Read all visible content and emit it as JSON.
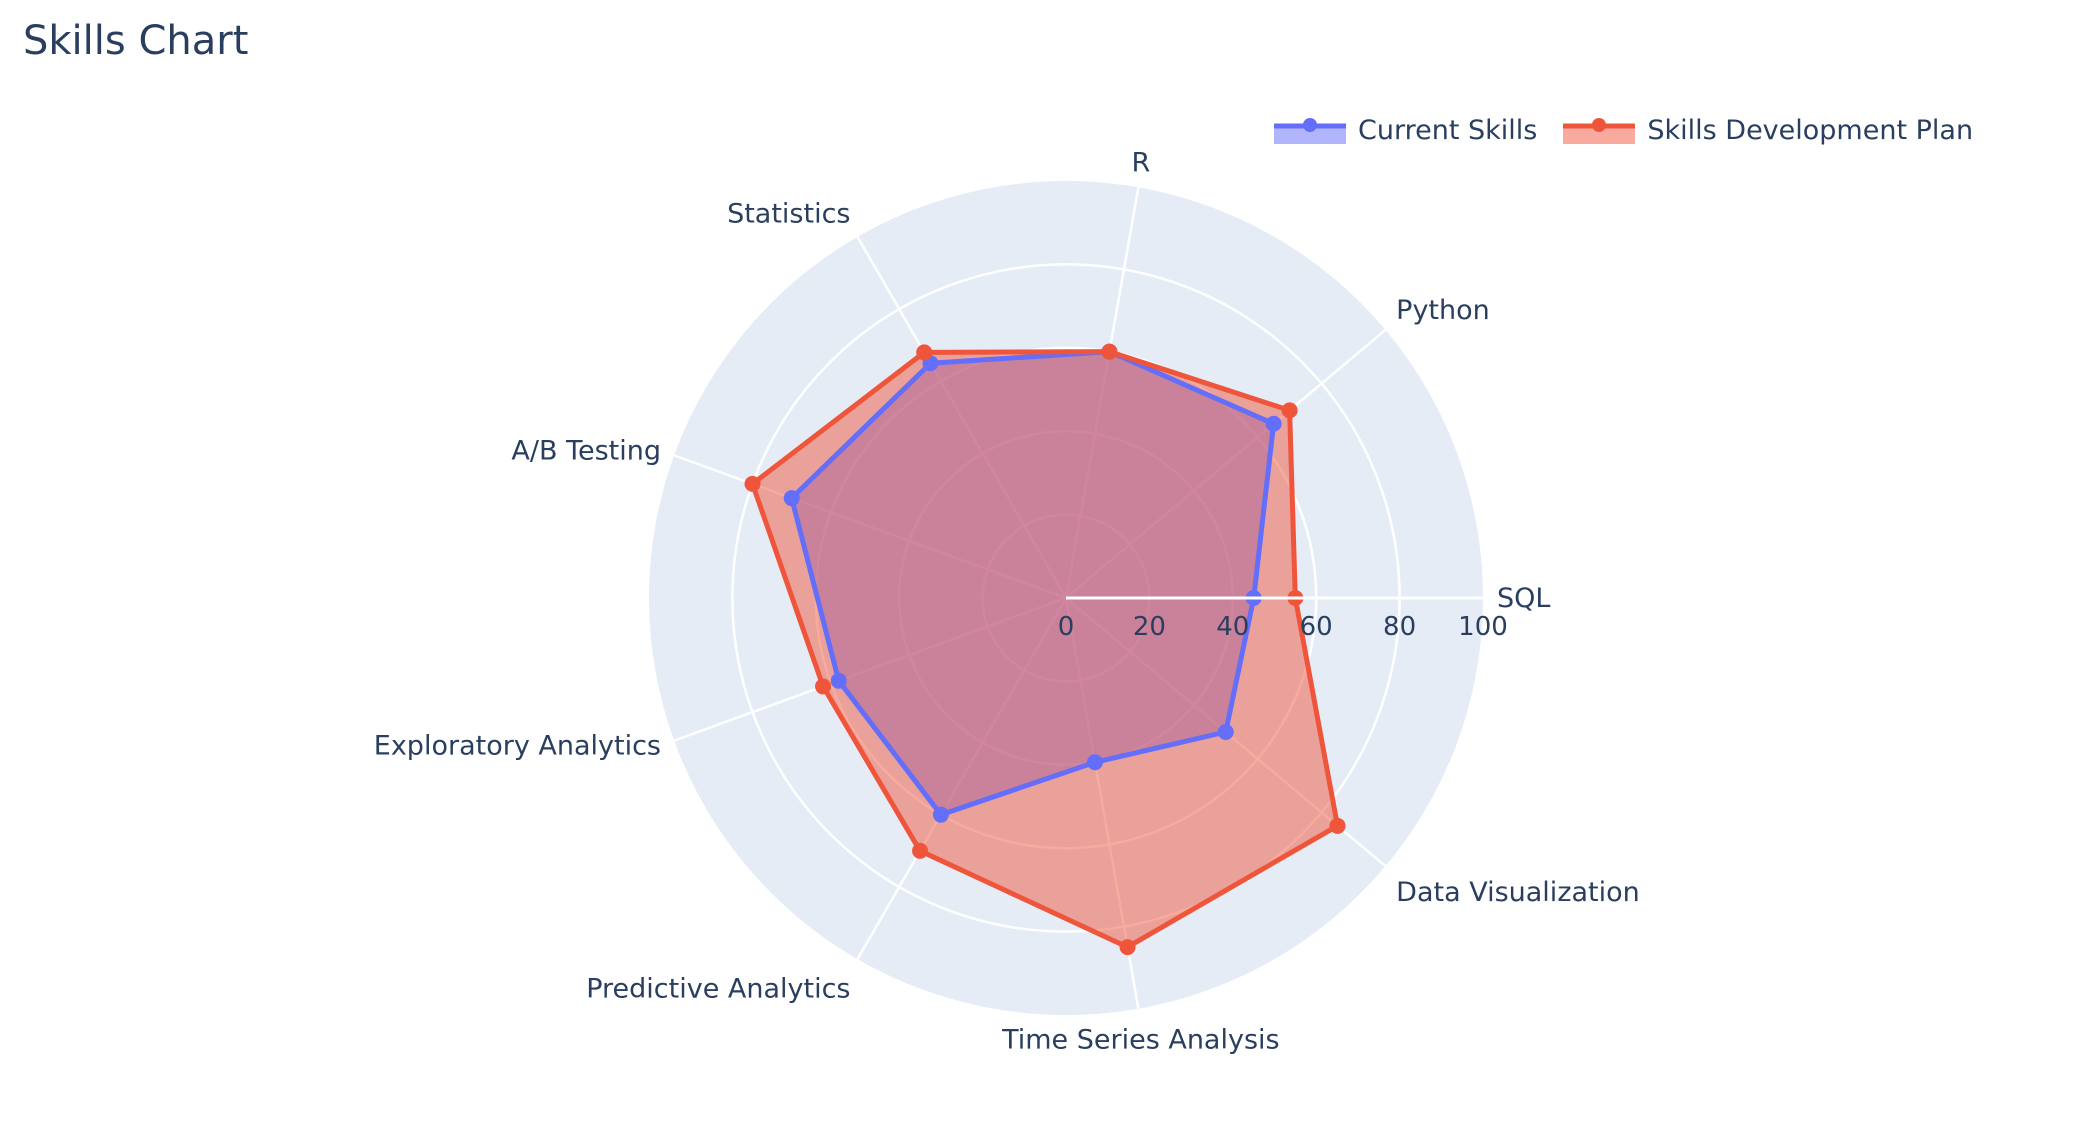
{
  "title": "Skills Chart",
  "legend": {
    "items": [
      {
        "label": "Current Skills",
        "color": "#636efa",
        "fill": "rgba(99,110,250,0.5)"
      },
      {
        "label": "Skills Development Plan",
        "color": "#ef553b",
        "fill": "rgba(239,85,59,0.5)"
      }
    ]
  },
  "colors": {
    "polar_bg": "#e5ecf6",
    "grid": "#ffffff",
    "text": "#2a3f5f"
  },
  "chart_data": {
    "type": "radar",
    "title": "Skills Chart",
    "categories": [
      "SQL",
      "Python",
      "R",
      "Statistics",
      "A/B Testing",
      "Exploratory Analytics",
      "Predictive Analytics",
      "Time Series Analysis",
      "Data Visualization"
    ],
    "series": [
      {
        "name": "Current Skills",
        "values": [
          45,
          65,
          60,
          65,
          70,
          58,
          60,
          40,
          50
        ],
        "fill": "toself"
      },
      {
        "name": "Skills Development Plan",
        "values": [
          55,
          70,
          60,
          68,
          80,
          62,
          70,
          85,
          85
        ],
        "fill": "toself"
      }
    ],
    "radial_range": [
      0,
      100
    ],
    "radial_ticks": [
      "0",
      "20",
      "40",
      "60",
      "80",
      "100"
    ],
    "grid": true,
    "legend_position": "top-right"
  }
}
